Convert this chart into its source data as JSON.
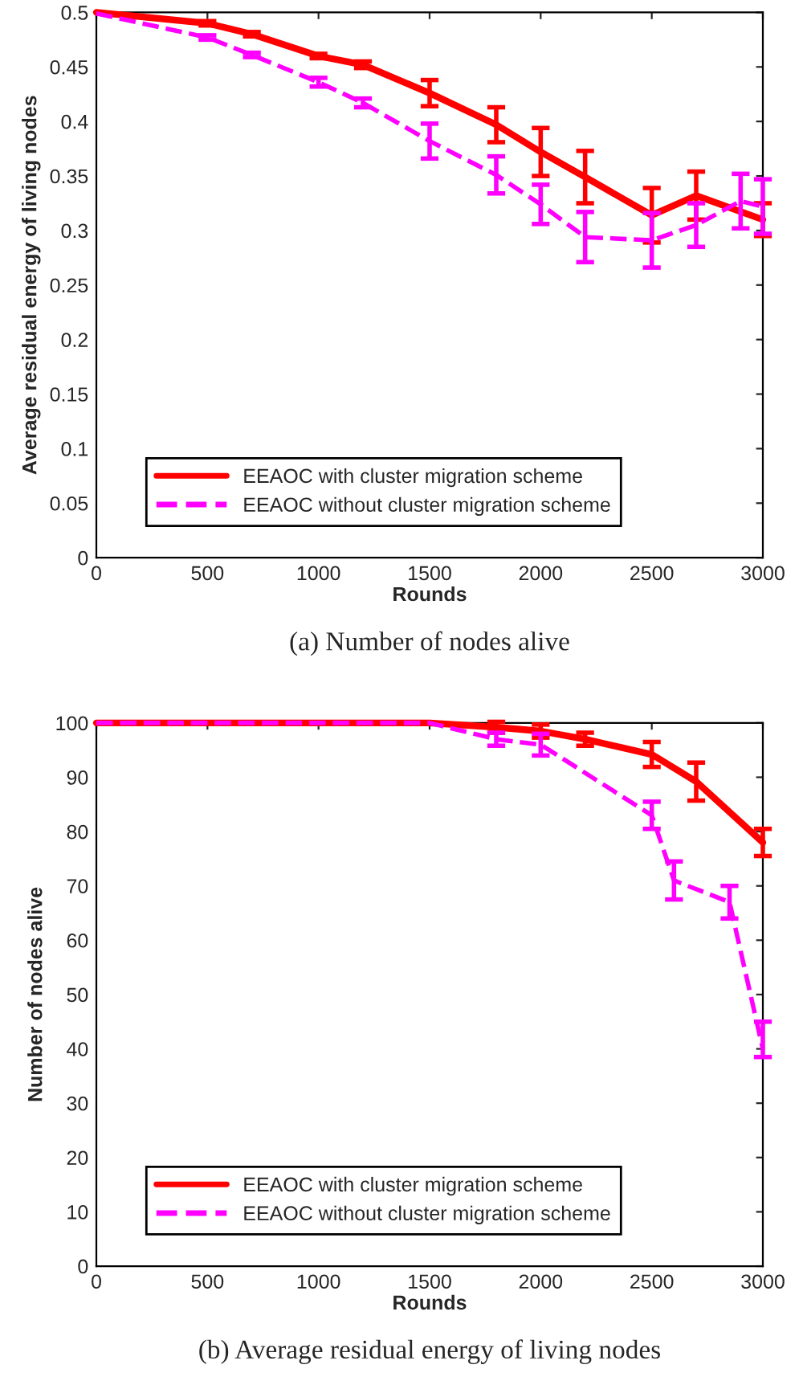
{
  "chart_data": [
    {
      "type": "line",
      "xlabel": "Rounds",
      "ylabel": "Average residual energy of living nodes",
      "annotations": [
        "(a) Number of nodes alive"
      ],
      "xlim": [
        0,
        3000
      ],
      "xticks": [
        0,
        500,
        1000,
        1500,
        2000,
        2500,
        3000
      ],
      "ylim": [
        0,
        0.5
      ],
      "yticks": [
        0,
        0.05,
        0.1,
        0.15,
        0.2,
        0.25,
        0.3,
        0.35,
        0.4,
        0.45,
        0.5
      ],
      "grid": false,
      "legend": "bottom left",
      "marker": "none",
      "series": [
        {
          "name": "EEAOC with cluster migration scheme",
          "color": "#ff0000",
          "line_style": "solid",
          "x": [
            0,
            500,
            700,
            1000,
            1200,
            1500,
            1800,
            2000,
            2200,
            2500,
            2700,
            3000
          ],
          "values": [
            0.5,
            0.49,
            0.48,
            0.46,
            0.452,
            0.426,
            0.397,
            0.372,
            0.349,
            0.314,
            0.332,
            0.31
          ],
          "errors": [
            null,
            0.002,
            0.002,
            0.002,
            0.003,
            0.012,
            0.016,
            0.022,
            0.024,
            0.025,
            0.022,
            0.015
          ]
        },
        {
          "name": "EEAOC without cluster migration scheme",
          "color": "#ff00ff",
          "line_style": "dashed",
          "x": [
            0,
            500,
            700,
            1000,
            1200,
            1500,
            1800,
            2000,
            2200,
            2500,
            2700,
            2900,
            3000
          ],
          "values": [
            0.499,
            0.477,
            0.461,
            0.436,
            0.417,
            0.382,
            0.351,
            0.324,
            0.294,
            0.291,
            0.305,
            0.327,
            0.322
          ],
          "errors": [
            null,
            0.002,
            0.002,
            0.004,
            0.004,
            0.016,
            0.017,
            0.018,
            0.023,
            0.025,
            0.02,
            0.025,
            0.025
          ]
        }
      ]
    },
    {
      "type": "line",
      "xlabel": "Rounds",
      "ylabel": "Number of nodes alive",
      "annotations": [
        "(b) Average residual energy of living nodes"
      ],
      "xlim": [
        0,
        3000
      ],
      "xticks": [
        0,
        500,
        1000,
        1500,
        2000,
        2500,
        3000
      ],
      "ylim": [
        0,
        100
      ],
      "yticks": [
        0,
        10,
        20,
        30,
        40,
        50,
        60,
        70,
        80,
        90,
        100
      ],
      "grid": false,
      "legend": "bottom left",
      "marker": "none",
      "series": [
        {
          "name": "EEAOC with cluster migration scheme",
          "color": "#ff0000",
          "line_style": "solid",
          "x": [
            0,
            500,
            1000,
            1500,
            1800,
            2000,
            2200,
            2500,
            2700,
            3000
          ],
          "values": [
            100,
            100,
            100,
            100,
            99.2,
            98.5,
            97,
            94.2,
            89.2,
            78
          ],
          "errors": [
            null,
            null,
            null,
            null,
            1,
            1.2,
            1.2,
            2.3,
            3.5,
            2.5
          ]
        },
        {
          "name": "EEAOC without cluster migration scheme",
          "color": "#ff00ff",
          "line_style": "dashed",
          "x": [
            0,
            500,
            1000,
            1500,
            1800,
            2000,
            2500,
            2600,
            2850,
            3000
          ],
          "values": [
            100,
            100,
            100,
            100,
            97,
            96,
            83,
            71,
            67,
            40
          ],
          "errors": [
            null,
            null,
            null,
            null,
            1.2,
            2,
            2.5,
            3.5,
            3,
            [
              38.5,
              45
            ]
          ]
        }
      ]
    }
  ]
}
